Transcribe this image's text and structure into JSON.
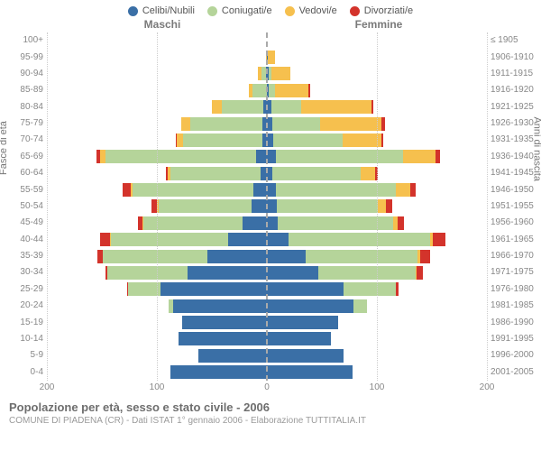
{
  "legend": [
    {
      "label": "Celibi/Nubili",
      "color": "#3a6fa6"
    },
    {
      "label": "Coniugati/e",
      "color": "#b5d49a"
    },
    {
      "label": "Vedovi/e",
      "color": "#f6c04e"
    },
    {
      "label": "Divorziati/e",
      "color": "#d3332b"
    }
  ],
  "header_left": "Maschi",
  "header_right": "Femmine",
  "y_left_title": "Fasce di età",
  "y_right_title": "Anni di nascita",
  "xmax": 200,
  "xticks": [
    -200,
    -100,
    0,
    100,
    200
  ],
  "xtick_labels": [
    "200",
    "100",
    "0",
    "100",
    "200"
  ],
  "grid_values": [
    -200,
    -100,
    100,
    200
  ],
  "footer_title": "Popolazione per età, sesso e stato civile - 2006",
  "footer_sub": "COMUNE DI PIADENA (CR) - Dati ISTAT 1° gennaio 2006 - Elaborazione TUTTITALIA.IT",
  "rows": [
    {
      "age": "100+",
      "birth": "≤ 1905",
      "m": [
        0,
        0,
        0,
        0
      ],
      "f": [
        0,
        0,
        0,
        0
      ]
    },
    {
      "age": "95-99",
      "birth": "1906-1910",
      "m": [
        0,
        0,
        1,
        0
      ],
      "f": [
        1,
        0,
        6,
        0
      ]
    },
    {
      "age": "90-94",
      "birth": "1911-1915",
      "m": [
        1,
        4,
        3,
        0
      ],
      "f": [
        2,
        2,
        17,
        0
      ]
    },
    {
      "age": "85-89",
      "birth": "1916-1920",
      "m": [
        0,
        13,
        3,
        0
      ],
      "f": [
        2,
        5,
        31,
        1
      ]
    },
    {
      "age": "80-84",
      "birth": "1921-1925",
      "m": [
        3,
        38,
        9,
        0
      ],
      "f": [
        4,
        27,
        64,
        2
      ]
    },
    {
      "age": "75-79",
      "birth": "1926-1930",
      "m": [
        4,
        66,
        8,
        0
      ],
      "f": [
        5,
        43,
        56,
        3
      ]
    },
    {
      "age": "70-74",
      "birth": "1931-1935",
      "m": [
        4,
        72,
        6,
        1
      ],
      "f": [
        6,
        63,
        35,
        2
      ]
    },
    {
      "age": "65-69",
      "birth": "1936-1940",
      "m": [
        10,
        137,
        5,
        3
      ],
      "f": [
        8,
        116,
        29,
        4
      ]
    },
    {
      "age": "60-64",
      "birth": "1941-1945",
      "m": [
        6,
        82,
        2,
        2
      ],
      "f": [
        5,
        80,
        13,
        3
      ]
    },
    {
      "age": "55-59",
      "birth": "1946-1950",
      "m": [
        12,
        110,
        2,
        7
      ],
      "f": [
        8,
        109,
        13,
        5
      ]
    },
    {
      "age": "50-54",
      "birth": "1951-1955",
      "m": [
        14,
        84,
        2,
        5
      ],
      "f": [
        9,
        92,
        7,
        6
      ]
    },
    {
      "age": "45-49",
      "birth": "1956-1960",
      "m": [
        22,
        90,
        1,
        4
      ],
      "f": [
        10,
        105,
        4,
        6
      ]
    },
    {
      "age": "40-44",
      "birth": "1961-1965",
      "m": [
        35,
        107,
        1,
        9
      ],
      "f": [
        20,
        128,
        3,
        11
      ]
    },
    {
      "age": "35-39",
      "birth": "1966-1970",
      "m": [
        54,
        95,
        0,
        5
      ],
      "f": [
        35,
        102,
        2,
        9
      ]
    },
    {
      "age": "30-34",
      "birth": "1971-1975",
      "m": [
        72,
        73,
        0,
        2
      ],
      "f": [
        47,
        88,
        1,
        6
      ]
    },
    {
      "age": "25-29",
      "birth": "1976-1980",
      "m": [
        97,
        29,
        0,
        1
      ],
      "f": [
        70,
        47,
        0,
        3
      ]
    },
    {
      "age": "20-24",
      "birth": "1981-1985",
      "m": [
        85,
        4,
        0,
        0
      ],
      "f": [
        79,
        12,
        0,
        0
      ]
    },
    {
      "age": "15-19",
      "birth": "1986-1990",
      "m": [
        77,
        0,
        0,
        0
      ],
      "f": [
        65,
        0,
        0,
        0
      ]
    },
    {
      "age": "10-14",
      "birth": "1991-1995",
      "m": [
        80,
        0,
        0,
        0
      ],
      "f": [
        58,
        0,
        0,
        0
      ]
    },
    {
      "age": "5-9",
      "birth": "1996-2000",
      "m": [
        62,
        0,
        0,
        0
      ],
      "f": [
        70,
        0,
        0,
        0
      ]
    },
    {
      "age": "0-4",
      "birth": "2001-2005",
      "m": [
        88,
        0,
        0,
        0
      ],
      "f": [
        78,
        0,
        0,
        0
      ]
    }
  ]
}
